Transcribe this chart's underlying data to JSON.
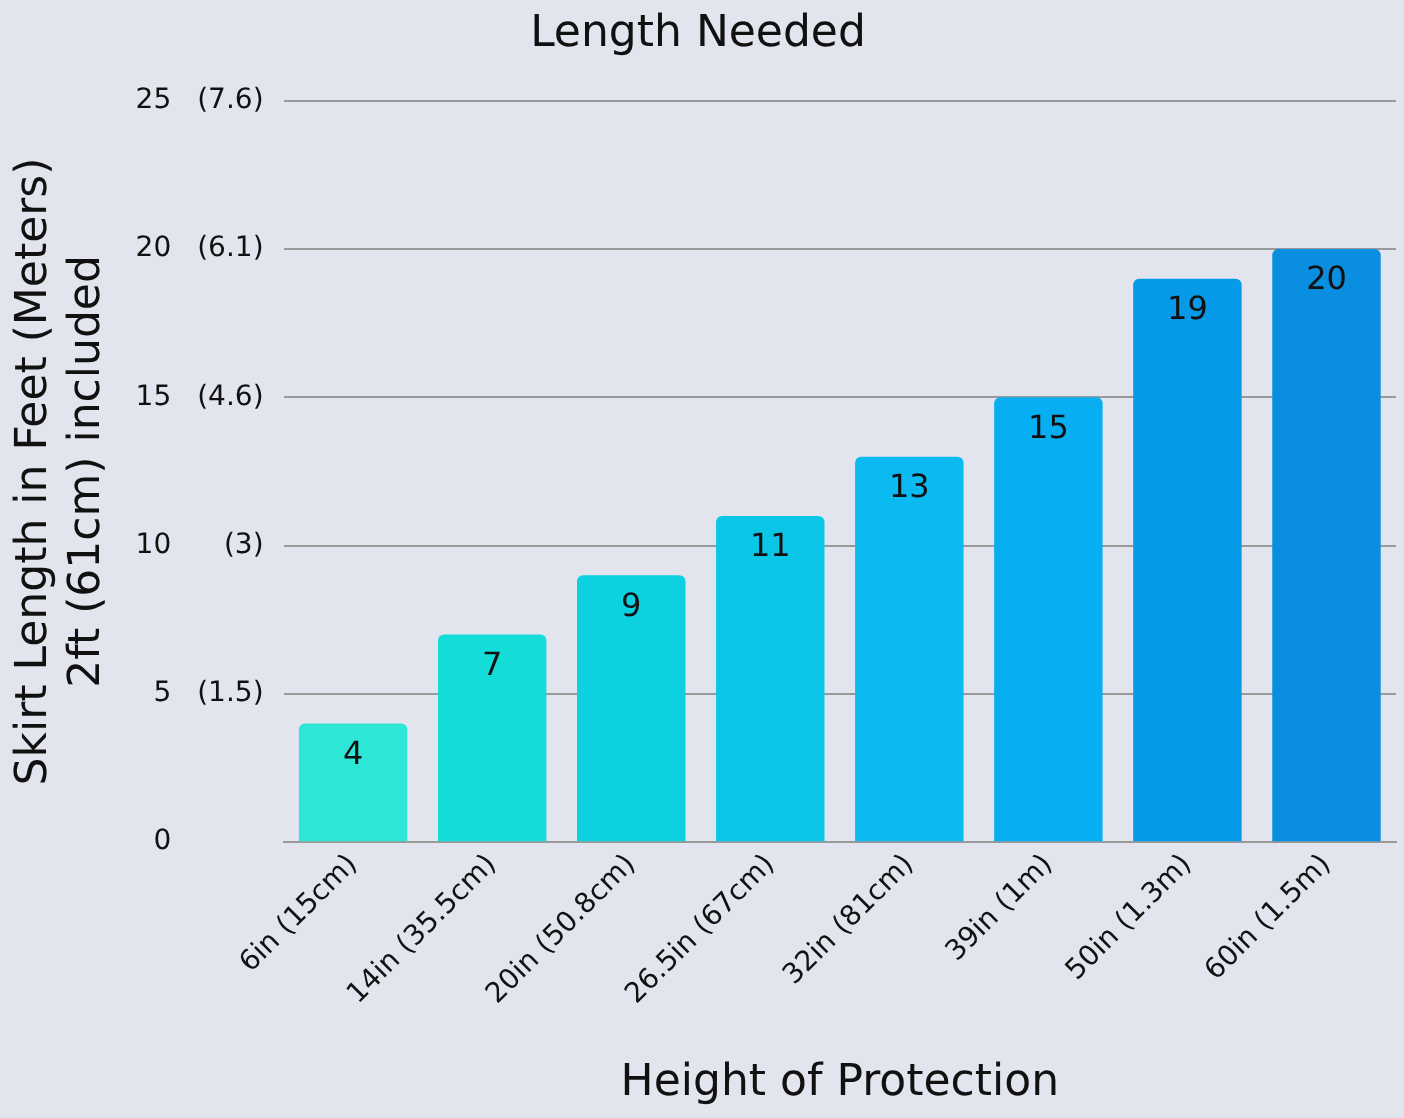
{
  "chart_data": {
    "type": "bar",
    "title": "Length Needed",
    "xlabel": "Height of Protection",
    "ylabel": "Skirt Length in Feet (Meters)\n2ft (61cm) included",
    "categories": [
      "6in (15cm)",
      "14in (35.5cm)",
      "20in (50.8cm)",
      "26.5in (67cm)",
      "32in (81cm)",
      "39in (1m)",
      "50in (1.3m)",
      "60in (1.5m)"
    ],
    "values": [
      4,
      7,
      9,
      11,
      13,
      15,
      19,
      20
    ],
    "colors": [
      "#2ee6d6",
      "#14dcd6",
      "#0dd0e0",
      "#0cc6e8",
      "#0bbaf0",
      "#08aef2",
      "#069ae8",
      "#0a8ee0"
    ],
    "ylim": [
      0,
      25
    ],
    "yticks": [
      0,
      5,
      10,
      15,
      20,
      25
    ],
    "y2lim": [
      0,
      7.62
    ],
    "y2ticks": [
      {
        "value": 1.524,
        "label": "(1.5)"
      },
      {
        "value": 3.048,
        "label": "(3)"
      },
      {
        "value": 4.572,
        "label": "(4.6)"
      },
      {
        "value": 6.096,
        "label": "(6.1)"
      },
      {
        "value": 7.62,
        "label": "(7.6)"
      }
    ],
    "grid": "y",
    "data_labels": true
  }
}
